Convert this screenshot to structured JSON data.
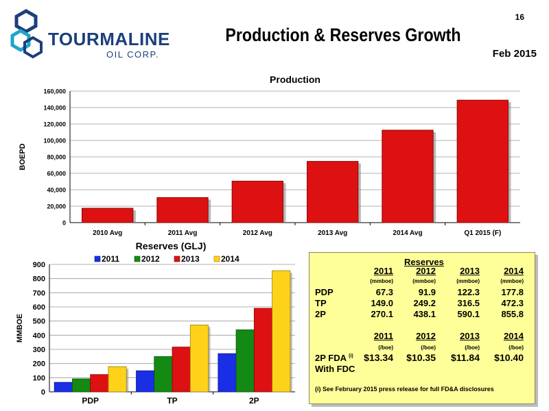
{
  "header": {
    "page_number": "16",
    "title": "Production & Reserves Growth",
    "date": "Feb 2015",
    "logo_name": "TOURMALINE",
    "logo_sub": "OIL CORP."
  },
  "chart_data": [
    {
      "type": "bar",
      "title": "Production",
      "ylabel": "BOEPD",
      "xlabel": "",
      "categories": [
        "2010 Avg",
        "2011 Avg",
        "2012 Avg",
        "2013 Avg",
        "2014 Avg",
        "Q1 2015 (F)"
      ],
      "values": [
        17500,
        30500,
        50500,
        74500,
        112500,
        149000
      ],
      "ylim": [
        0,
        160000
      ],
      "y_ticks": [
        "0",
        "20,000",
        "40,000",
        "60,000",
        "80,000",
        "100,000",
        "120,000",
        "140,000",
        "160,000"
      ],
      "grid": true,
      "color": "#dd1111"
    },
    {
      "type": "bar",
      "title": "Reserves (GLJ)",
      "ylabel": "MMBOE",
      "xlabel": "",
      "categories": [
        "PDP",
        "TP",
        "2P"
      ],
      "series": [
        {
          "name": "2011",
          "values": [
            67.3,
            149.0,
            270.1
          ],
          "color": "#1a2ee6"
        },
        {
          "name": "2012",
          "values": [
            91.9,
            249.2,
            438.1
          ],
          "color": "#138a13"
        },
        {
          "name": "2013",
          "values": [
            122.3,
            316.5,
            590.1
          ],
          "color": "#dd1111"
        },
        {
          "name": "2014",
          "values": [
            177.8,
            472.3,
            855.8
          ],
          "color": "#ffd21a"
        }
      ],
      "ylim": [
        0,
        900
      ],
      "y_ticks": [
        "0",
        "100",
        "200",
        "300",
        "400",
        "500",
        "600",
        "700",
        "800",
        "900"
      ],
      "legend": "top",
      "grid": true
    }
  ],
  "reserves_table": {
    "title": "Reserves",
    "years": [
      "2011",
      "2012",
      "2013",
      "2014"
    ],
    "unit_mmboe": "(mmboe)",
    "rows": [
      {
        "label": "PDP",
        "values": [
          "67.3",
          "91.9",
          "122.3",
          "177.8"
        ]
      },
      {
        "label": "TP",
        "values": [
          "149.0",
          "249.2",
          "316.5",
          "472.3"
        ]
      },
      {
        "label": "2P",
        "values": [
          "270.1",
          "438.1",
          "590.1",
          "855.8"
        ]
      }
    ],
    "years2": [
      "2011",
      "2012",
      "2013",
      "2014"
    ],
    "unit_boe": "(/boe)",
    "fda_label": "2P FDA",
    "fda_sup": "(i)",
    "fda_label2": "With FDC",
    "fda_values": [
      "$13.34",
      "$10.35",
      "$11.84",
      "$10.40"
    ],
    "footnote": "(i)  See February 2015 press release for full FD&A disclosures"
  }
}
